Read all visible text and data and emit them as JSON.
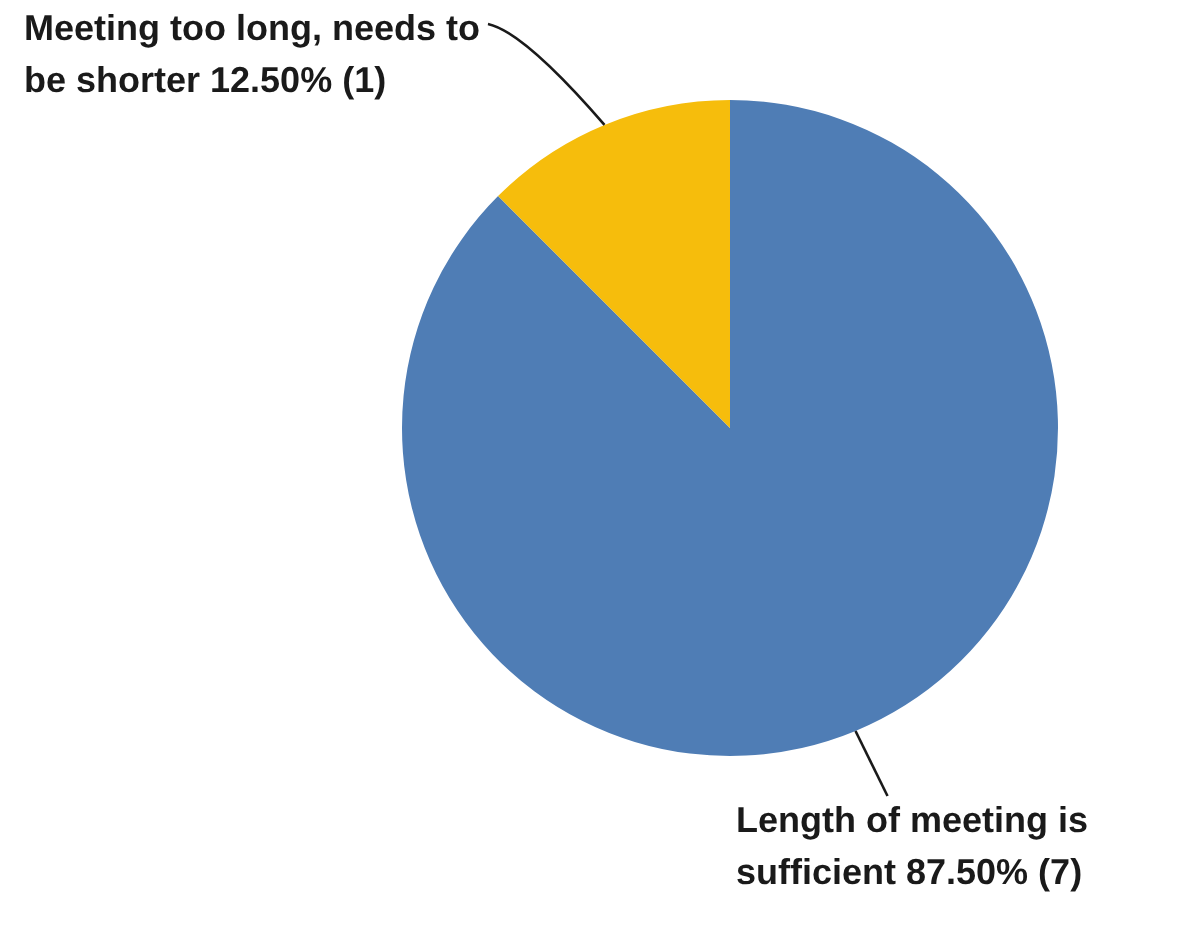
{
  "chart_data": {
    "type": "pie",
    "categories": [
      "Length of meeting is sufficient",
      "Meeting too long, needs to be shorter"
    ],
    "values": [
      7,
      1
    ],
    "value_labels": [
      "87.50% (7)",
      "12.50% (1)"
    ],
    "colors": [
      "#4f7db5",
      "#f6bd0c"
    ],
    "legend": false
  }
}
